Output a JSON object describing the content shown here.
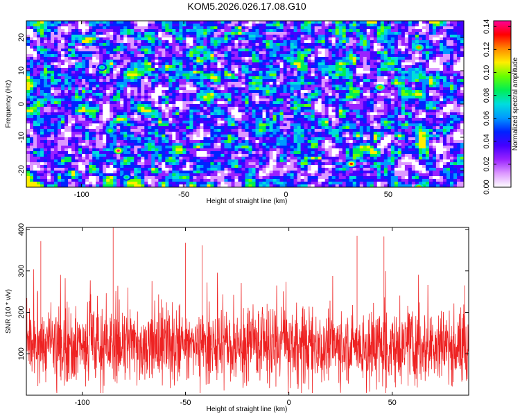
{
  "title": "KOM5.2026.026.17.08.G10",
  "colors": {
    "background": "#ffffff",
    "snr_line": "#ee2222",
    "axis": "#000000"
  },
  "chart_data": [
    {
      "type": "heatmap",
      "xlabel": "Height of straight line (km)",
      "ylabel": "Frequency (Hz)",
      "xlim": [
        -127,
        87
      ],
      "ylim": [
        -25,
        25
      ],
      "xticks": [
        -100,
        -50,
        0,
        50
      ],
      "xtick_labels": [
        "-100",
        "-50",
        "0",
        "50"
      ],
      "yticks": [
        -20,
        -10,
        0,
        10,
        20
      ],
      "ytick_labels": [
        "-20",
        "-10",
        "0",
        "10",
        "20"
      ],
      "colorbar": {
        "label": "Normalized spectral amplitude",
        "range": [
          0,
          0.145
        ],
        "ticks": [
          0,
          0.02,
          0.04,
          0.06,
          0.08,
          0.1,
          0.12,
          0.14
        ],
        "tick_labels": [
          "0.00",
          "0.02",
          "0.04",
          "0.06",
          "0.08",
          "0.10",
          "0.12",
          "0.14"
        ],
        "colormap": [
          "#ffffff",
          "#dd99ff",
          "#9922ff",
          "#4400ff",
          "#0022ff",
          "#0099ff",
          "#00dddd",
          "#00ee55",
          "#66ff00",
          "#ffee00",
          "#ff8800",
          "#ff0000",
          "#ff0099"
        ]
      },
      "peaks": [
        {
          "x": -82,
          "y": -14,
          "value": 0.14
        },
        {
          "x": 32,
          "y": -18,
          "value": 0.13
        },
        {
          "x": 65,
          "y": 17,
          "value": 0.12
        },
        {
          "x": 46,
          "y": 5,
          "value": 0.12
        },
        {
          "x": 65,
          "y": -25,
          "value": 0.12
        },
        {
          "x": -86,
          "y": -8,
          "value": 0.1
        },
        {
          "x": -90,
          "y": 11,
          "value": 0.09
        },
        {
          "x": -78,
          "y": -22,
          "value": 0.09
        }
      ]
    },
    {
      "type": "line",
      "xlabel": "Height of straight line (km)",
      "ylabel": "SNR (10 * v/v)",
      "xlim": [
        -127,
        87
      ],
      "ylim": [
        0,
        405
      ],
      "xticks": [
        -100,
        -50,
        0,
        50
      ],
      "xtick_labels": [
        "-100",
        "-50",
        "0",
        "50"
      ],
      "yticks": [
        100,
        200,
        300,
        400
      ],
      "ytick_labels": [
        "100",
        "200",
        "300",
        "400"
      ],
      "series": [
        {
          "name": "SNR",
          "color": "#ee2222",
          "x_start": -127,
          "x_end": 87,
          "samples": 1800,
          "baseline": 120,
          "spread": 60,
          "notable_peaks": [
            {
              "x": -85,
              "y": 405
            },
            {
              "x": -120,
              "y": 372
            },
            {
              "x": 33,
              "y": 385
            },
            {
              "x": 46,
              "y": 383
            },
            {
              "x": -50,
              "y": 368
            },
            {
              "x": -42,
              "y": 362
            },
            {
              "x": 85,
              "y": 265
            }
          ]
        }
      ]
    }
  ]
}
